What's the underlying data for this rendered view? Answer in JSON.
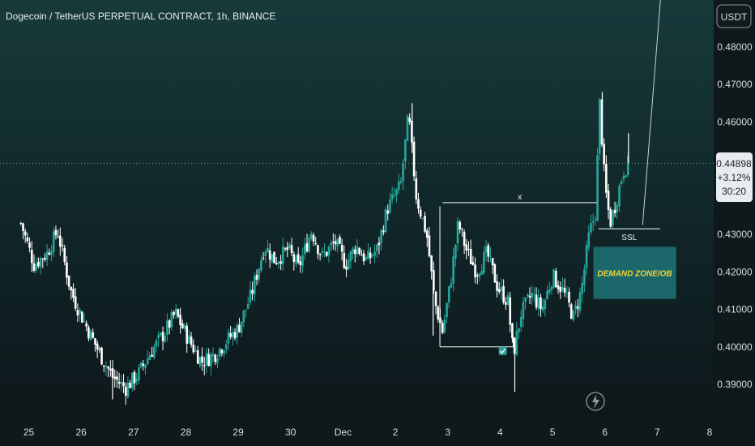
{
  "chart_data": {
    "type": "candlestick",
    "title": "Dogecoin / TetherUS PERPETUAL CONTRACT, 1h, BINANCE",
    "currency": "USDT",
    "x_ticks": [
      "25",
      "26",
      "27",
      "28",
      "29",
      "30",
      "Dec",
      "2",
      "3",
      "4",
      "5",
      "6",
      "7",
      "8"
    ],
    "x_tick_index": [
      0,
      1,
      2,
      3,
      4,
      5,
      6,
      7,
      8,
      9,
      10,
      11,
      12,
      13
    ],
    "y_ticks": [
      "0.48000",
      "0.47000",
      "0.46000",
      "0.43000",
      "0.42000",
      "0.41000",
      "0.40000",
      "0.39000"
    ],
    "y_tick_values": [
      0.48,
      0.47,
      0.46,
      0.43,
      0.42,
      0.41,
      0.4,
      0.39
    ],
    "ylim": [
      0.383,
      0.5
    ],
    "current_price": {
      "price": "0.44898",
      "change": "+3.12%",
      "countdown": "30:20",
      "value": 0.44898
    },
    "price_path": [
      [
        -0.15,
        0.433
      ],
      [
        0.1,
        0.422
      ],
      [
        0.35,
        0.425
      ],
      [
        0.55,
        0.431
      ],
      [
        0.8,
        0.415
      ],
      [
        0.95,
        0.41
      ],
      [
        1.15,
        0.404
      ],
      [
        1.4,
        0.397
      ],
      [
        1.6,
        0.392
      ],
      [
        1.85,
        0.389
      ],
      [
        2.1,
        0.393
      ],
      [
        2.35,
        0.399
      ],
      [
        2.6,
        0.404
      ],
      [
        2.8,
        0.409
      ],
      [
        3.05,
        0.402
      ],
      [
        3.3,
        0.396
      ],
      [
        3.55,
        0.398
      ],
      [
        3.8,
        0.402
      ],
      [
        4.0,
        0.405
      ],
      [
        4.25,
        0.414
      ],
      [
        4.5,
        0.427
      ],
      [
        4.7,
        0.423
      ],
      [
        4.95,
        0.426
      ],
      [
        5.15,
        0.421
      ],
      [
        5.4,
        0.431
      ],
      [
        5.6,
        0.424
      ],
      [
        5.85,
        0.428
      ],
      [
        6.05,
        0.422
      ],
      [
        6.25,
        0.427
      ],
      [
        6.45,
        0.423
      ],
      [
        6.65,
        0.426
      ],
      [
        6.85,
        0.437
      ],
      [
        7.1,
        0.443
      ],
      [
        7.25,
        0.462
      ],
      [
        7.4,
        0.44
      ],
      [
        7.6,
        0.43
      ],
      [
        7.75,
        0.412
      ],
      [
        7.9,
        0.404
      ],
      [
        8.05,
        0.417
      ],
      [
        8.2,
        0.433
      ],
      [
        8.35,
        0.426
      ],
      [
        8.55,
        0.42
      ],
      [
        8.75,
        0.425
      ],
      [
        8.95,
        0.416
      ],
      [
        9.15,
        0.412
      ],
      [
        9.25,
        0.398
      ],
      [
        9.4,
        0.409
      ],
      [
        9.6,
        0.414
      ],
      [
        9.8,
        0.41
      ],
      [
        10.0,
        0.419
      ],
      [
        10.2,
        0.415
      ],
      [
        10.4,
        0.408
      ],
      [
        10.55,
        0.415
      ],
      [
        10.7,
        0.43
      ],
      [
        10.82,
        0.436
      ],
      [
        10.9,
        0.465
      ],
      [
        11.0,
        0.443
      ],
      [
        11.1,
        0.433
      ],
      [
        11.2,
        0.438
      ],
      [
        11.35,
        0.447
      ],
      [
        11.45,
        0.449
      ]
    ],
    "wicks": [
      [
        7.32,
        0.465
      ],
      [
        10.95,
        0.468
      ],
      [
        9.28,
        0.388
      ],
      [
        7.72,
        0.403
      ],
      [
        1.6,
        0.386
      ],
      [
        11.45,
        0.457
      ]
    ],
    "annotations": {
      "x_label": "x",
      "ssl_label": "SSL",
      "zone_label": "DEMAND ZONE/OB",
      "range_high": 0.4375,
      "range_low": 0.4,
      "range_start": 7.85,
      "range_end": 9.25,
      "x_line_start": 7.9,
      "x_line_end": 10.85,
      "x_line_price": 0.4385,
      "ssl_start": 10.88,
      "ssl_end": 12.05,
      "ssl_price": 0.4315,
      "zone_start": 10.78,
      "zone_end": 12.36,
      "zone_high": 0.4267,
      "zone_low": 0.4128,
      "projection_start": [
        11.72,
        0.4325
      ],
      "projection_end": [
        12.1,
        0.4995
      ],
      "checkmark_index": 9.05,
      "checkmark_price": 0.3989
    },
    "colors": {
      "up": "#26a69a",
      "down": "#ffffff",
      "zone": "#1e6f71",
      "price_line": "#8fa0a8",
      "grid": "none",
      "label_bg": "#e8ecef"
    },
    "grid": false
  },
  "ui": {
    "lightning_icon": "lightning-icon"
  }
}
